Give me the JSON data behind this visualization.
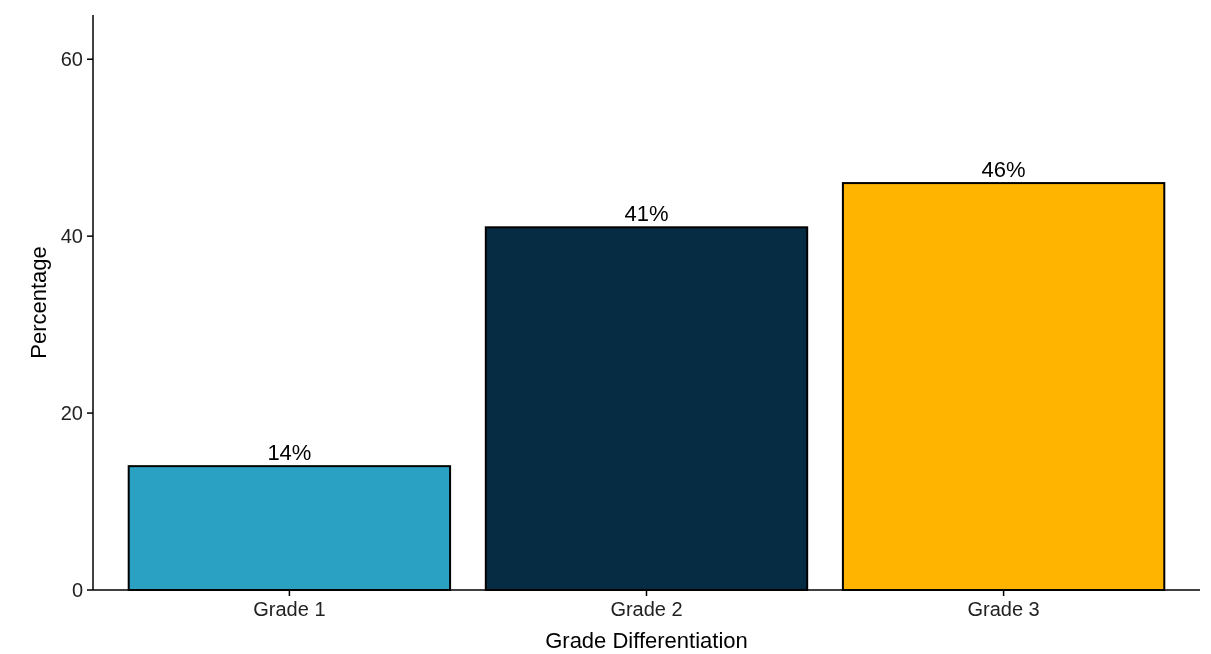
{
  "chart_data": {
    "type": "bar",
    "xlabel": "Grade Differentiation",
    "ylabel": "Percentage",
    "categories": [
      "Grade 1",
      "Grade 2",
      "Grade 3"
    ],
    "values": [
      14,
      41,
      46
    ],
    "colors": [
      "#2aa0c2",
      "#062c44",
      "#ffb400"
    ],
    "value_labels": [
      "14%",
      "41%",
      "46%"
    ],
    "ylim": [
      0,
      65
    ],
    "yticks": [
      0,
      20,
      40,
      60
    ],
    "grid": false
  }
}
